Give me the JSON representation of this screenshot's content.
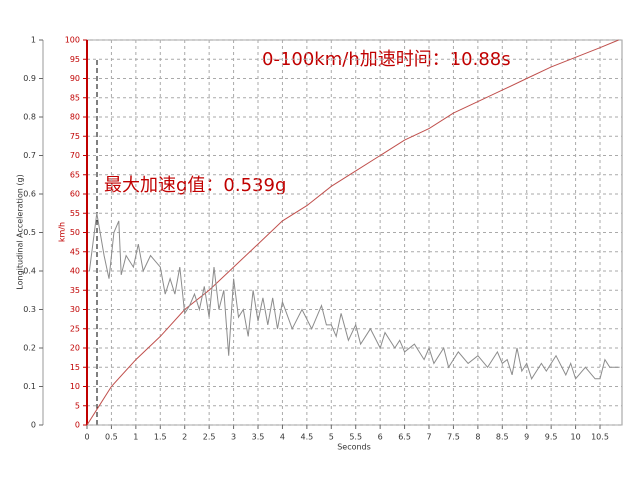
{
  "chart_data": {
    "type": "line",
    "xlabel": "Seconds",
    "ylabel": "Longitudinal Acceleration (g)",
    "y2label": "km/h",
    "annotations": [
      "0-100km/h加速时间：10.88s",
      "最大加速g值：0.539g"
    ],
    "xlim": [
      0,
      10.95
    ],
    "xticks": [
      0,
      0.5,
      1,
      1.5,
      2,
      2.5,
      3,
      3.5,
      4,
      4.5,
      5,
      5.5,
      6,
      6.5,
      7,
      7.5,
      8,
      8.5,
      9,
      9.5,
      10,
      10.5
    ],
    "ylim": [
      0,
      1
    ],
    "yticks": [
      0,
      0.1,
      0.2,
      0.3,
      0.4,
      0.5,
      0.6,
      0.7,
      0.8,
      0.9,
      1
    ],
    "y2lim": [
      0,
      100
    ],
    "y2ticks": [
      0,
      5,
      10,
      15,
      20,
      25,
      30,
      35,
      40,
      45,
      50,
      55,
      60,
      65,
      70,
      75,
      80,
      85,
      90,
      95,
      100
    ],
    "grid": true,
    "y2color": "#c00000",
    "series": [
      {
        "color": "#c0504d",
        "axis": "y2",
        "x": [
          0,
          0.25,
          0.5,
          1,
          1.5,
          2,
          2.5,
          3,
          3.5,
          4,
          4.5,
          5,
          5.5,
          6,
          6.5,
          7,
          7.5,
          8,
          8.5,
          9,
          9.5,
          10,
          10.5,
          10.88
        ],
        "values": [
          0,
          5,
          10,
          17,
          23,
          30,
          35,
          41,
          47,
          53,
          57,
          62,
          66,
          70,
          74,
          77,
          81,
          84,
          87,
          90,
          93,
          95.5,
          98,
          100
        ]
      },
      {
        "color": "#8c8c8c",
        "axis": "y",
        "x": [
          0.05,
          0.2,
          0.35,
          0.45,
          0.55,
          0.65,
          0.7,
          0.8,
          0.95,
          1.05,
          1.15,
          1.3,
          1.5,
          1.6,
          1.7,
          1.8,
          1.9,
          2.0,
          2.1,
          2.2,
          2.3,
          2.4,
          2.5,
          2.6,
          2.7,
          2.8,
          2.9,
          3.0,
          3.1,
          3.2,
          3.3,
          3.4,
          3.5,
          3.6,
          3.7,
          3.8,
          3.9,
          4.0,
          4.2,
          4.4,
          4.6,
          4.8,
          4.9,
          5.0,
          5.1,
          5.2,
          5.35,
          5.5,
          5.6,
          5.8,
          6.0,
          6.1,
          6.3,
          6.4,
          6.5,
          6.7,
          6.9,
          7.0,
          7.1,
          7.3,
          7.4,
          7.6,
          7.8,
          8.0,
          8.2,
          8.4,
          8.5,
          8.6,
          8.7,
          8.8,
          8.9,
          9.0,
          9.1,
          9.3,
          9.4,
          9.6,
          9.8,
          9.9,
          10.0,
          10.2,
          10.4,
          10.5,
          10.6,
          10.7,
          10.9
        ],
        "values": [
          0.4,
          0.55,
          0.44,
          0.38,
          0.5,
          0.53,
          0.39,
          0.44,
          0.41,
          0.47,
          0.4,
          0.44,
          0.41,
          0.34,
          0.38,
          0.34,
          0.41,
          0.29,
          0.31,
          0.34,
          0.3,
          0.36,
          0.28,
          0.41,
          0.3,
          0.35,
          0.18,
          0.38,
          0.28,
          0.3,
          0.23,
          0.35,
          0.27,
          0.33,
          0.26,
          0.33,
          0.25,
          0.32,
          0.25,
          0.3,
          0.25,
          0.31,
          0.26,
          0.26,
          0.23,
          0.29,
          0.22,
          0.26,
          0.21,
          0.25,
          0.2,
          0.24,
          0.2,
          0.22,
          0.19,
          0.21,
          0.17,
          0.2,
          0.16,
          0.2,
          0.15,
          0.19,
          0.16,
          0.18,
          0.15,
          0.19,
          0.16,
          0.17,
          0.13,
          0.2,
          0.14,
          0.16,
          0.12,
          0.16,
          0.14,
          0.18,
          0.13,
          0.16,
          0.12,
          0.15,
          0.12,
          0.12,
          0.17,
          0.15,
          0.15
        ]
      }
    ]
  }
}
